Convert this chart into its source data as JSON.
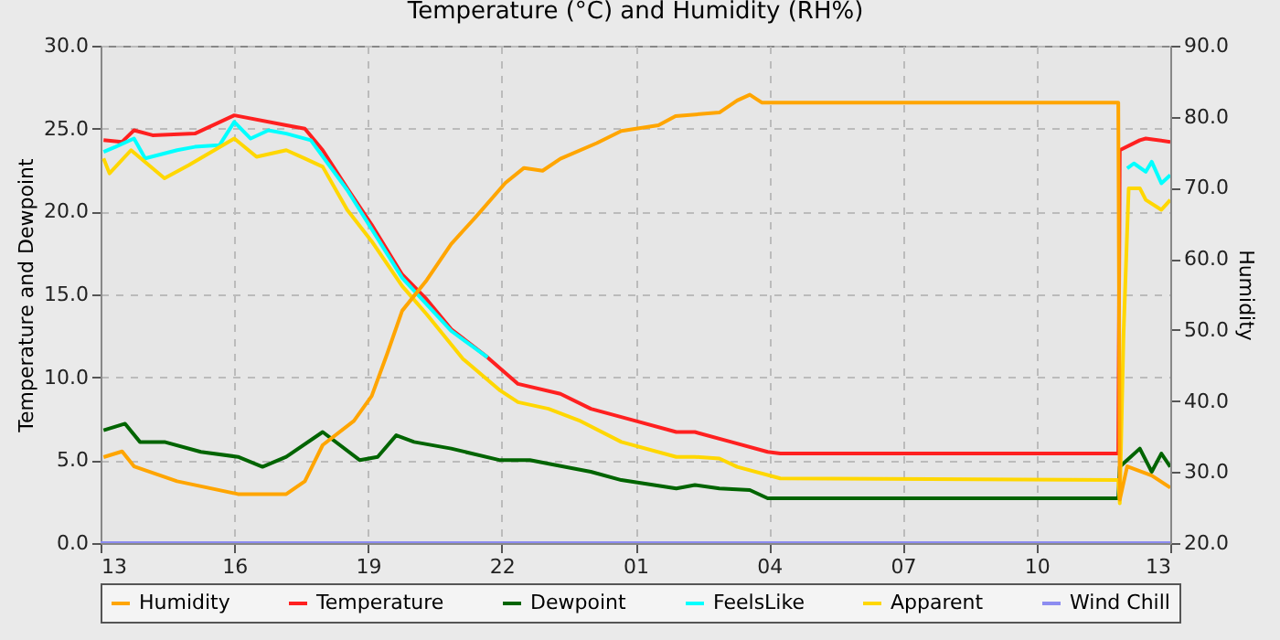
{
  "chart_data": {
    "type": "line",
    "title": "Temperature (°C) and Humidity (RH%)",
    "ylabel": "Temperature and Dewpoint",
    "y2label": "Humidity",
    "xlim": [
      "--01-01T13:00",
      "--01-02T13:00"
    ],
    "xticks": [
      {
        "value": "--01-01T13:00",
        "label": "13"
      },
      {
        "value": "--01-01T16:00",
        "label": "16"
      },
      {
        "value": "--01-01T19:00",
        "label": "19"
      },
      {
        "value": "--01-01T22:00",
        "label": "22"
      },
      {
        "value": "--01-02T01:00",
        "label": "01"
      },
      {
        "value": "--01-02T04:00",
        "label": "04"
      },
      {
        "value": "--01-02T07:00",
        "label": "07"
      },
      {
        "value": "--01-02T10:00",
        "label": "10"
      },
      {
        "value": "--01-02T13:00",
        "label": "13"
      }
    ],
    "ylim": [
      0,
      30
    ],
    "yticks": [
      {
        "value": 0,
        "label": "0.0"
      },
      {
        "value": 5,
        "label": "5.0"
      },
      {
        "value": 10,
        "label": "10.0"
      },
      {
        "value": 15,
        "label": "15.0"
      },
      {
        "value": 20,
        "label": "20.0"
      },
      {
        "value": 25,
        "label": "25.0"
      },
      {
        "value": 30,
        "label": "30.0"
      }
    ],
    "y2lim": [
      20,
      90
    ],
    "y2ticks": [
      {
        "value": 20,
        "label": "20.0"
      },
      {
        "value": 30,
        "label": "30.0"
      },
      {
        "value": 40,
        "label": "40.0"
      },
      {
        "value": 50,
        "label": "50.0"
      },
      {
        "value": 60,
        "label": "60.0"
      },
      {
        "value": 70,
        "label": "70.0"
      },
      {
        "value": 80,
        "label": "80.0"
      },
      {
        "value": 90,
        "label": "90.0"
      }
    ],
    "grid": true,
    "legend": "bottom",
    "line_style": "solid",
    "series": [
      {
        "name": "Humidity",
        "color": "#ffa500",
        "axis": "y2",
        "x": [
          "--01-01T13:04",
          "--01-01T13:29",
          "--01-01T13:45",
          "--01-01T14:43",
          "--01-01T16:05",
          "--01-01T17:10",
          "--01-01T17:35",
          "--01-01T17:59",
          "--01-01T18:41",
          "--01-01T19:05",
          "--01-01T19:26",
          "--01-01T19:46",
          "--01-01T20:19",
          "--01-01T20:52",
          "--01-01T21:25",
          "--01-01T22:05",
          "--01-01T22:30",
          "--01-01T22:55",
          "--01-01T23:19",
          "--01-02T00:08",
          "--01-02T00:41",
          "--01-02T01:31",
          "--01-02T01:54",
          "--01-02T02:53",
          "--01-02T03:17",
          "--01-02T03:34",
          "--01-02T03:50",
          "--01-02T11:50",
          "--01-02T11:52",
          "--01-02T12:02",
          "--01-02T12:35",
          "--01-02T13:00"
        ],
        "values": [
          32.1,
          32.9,
          30.8,
          28.7,
          26.9,
          26.9,
          28.7,
          33.8,
          37.2,
          40.7,
          46.7,
          52.7,
          57.0,
          62.1,
          65.9,
          70.7,
          72.8,
          72.4,
          74.1,
          76.3,
          78.0,
          78.8,
          80.1,
          80.6,
          82.3,
          83.1,
          82.0,
          82.0,
          26.1,
          30.8,
          29.5,
          27.8
        ]
      },
      {
        "name": "Temperature",
        "color": "#ff2020",
        "x": [
          "--01-01T13:04",
          "--01-01T13:29",
          "--01-01T13:45",
          "--01-01T14:10",
          "--01-01T15:07",
          "--01-01T16:00",
          "--01-01T17:10",
          "--01-01T17:35",
          "--01-01T17:59",
          "--01-01T18:32",
          "--01-01T19:05",
          "--01-01T19:46",
          "--01-01T20:19",
          "--01-01T20:52",
          "--01-01T21:41",
          "--01-01T22:22",
          "--01-01T23:19",
          "--01-02T00:00",
          "--01-02T00:58",
          "--01-02T01:55",
          "--01-02T02:20",
          "--01-02T03:09",
          "--01-02T03:58",
          "--01-02T04:15",
          "--01-02T11:50",
          "--01-02T11:52",
          "--01-02T12:19",
          "--01-02T12:27",
          "--01-02T13:00"
        ],
        "values": [
          24.3,
          24.2,
          24.9,
          24.6,
          24.7,
          25.8,
          25.2,
          25.0,
          23.7,
          21.4,
          19.2,
          16.2,
          14.7,
          12.9,
          11.2,
          9.6,
          9.0,
          8.1,
          7.4,
          6.7,
          6.7,
          6.1,
          5.5,
          5.4,
          5.4,
          23.7,
          24.3,
          24.4,
          24.2
        ]
      },
      {
        "name": "Dewpoint",
        "color": "#006400",
        "x": [
          "--01-01T13:04",
          "--01-01T13:33",
          "--01-01T13:53",
          "--01-01T14:26",
          "--01-01T15:15",
          "--01-01T16:05",
          "--01-01T16:38",
          "--01-01T17:10",
          "--01-01T17:59",
          "--01-01T18:49",
          "--01-01T19:13",
          "--01-01T19:38",
          "--01-01T20:02",
          "--01-01T20:52",
          "--01-01T21:58",
          "--01-01T22:38",
          "--01-02T00:00",
          "--01-02T00:41",
          "--01-02T01:55",
          "--01-02T02:20",
          "--01-02T02:53",
          "--01-02T03:34",
          "--01-02T03:58",
          "--01-02T11:50",
          "--01-02T11:52",
          "--01-02T12:19",
          "--01-02T12:35",
          "--01-02T12:48",
          "--01-02T13:00"
        ],
        "values": [
          6.8,
          7.2,
          6.1,
          6.1,
          5.5,
          5.2,
          4.6,
          5.2,
          6.7,
          5.0,
          5.2,
          6.5,
          6.1,
          5.7,
          5.0,
          5.0,
          4.3,
          3.8,
          3.3,
          3.5,
          3.3,
          3.2,
          2.7,
          2.7,
          4.6,
          5.7,
          4.3,
          5.4,
          4.6
        ]
      },
      {
        "name": "FeelsLike",
        "color": "#00ffff",
        "x": [
          "--01-01T13:04",
          "--01-01T13:20",
          "--01-01T13:45",
          "--01-01T14:00",
          "--01-01T14:43",
          "--01-01T15:07",
          "--01-01T15:40",
          "--01-01T16:00",
          "--01-01T16:22",
          "--01-01T16:46",
          "--01-01T17:10",
          "--01-01T17:43",
          "--01-01T18:32",
          "--01-01T19:46",
          "--01-01T20:52",
          "--01-01T21:41",
          "--01-01T22:00",
          "--01-02T12:02",
          "--01-02T12:11",
          "--01-02T12:27",
          "--01-02T12:35",
          "--01-02T12:48",
          "--01-02T13:00"
        ],
        "values": [
          23.6,
          23.9,
          24.4,
          23.2,
          23.7,
          23.9,
          24.0,
          25.4,
          24.4,
          24.9,
          24.7,
          24.3,
          21.3,
          16.0,
          12.8,
          11.2,
          null,
          22.6,
          22.9,
          22.4,
          23.0,
          21.7,
          22.2
        ]
      },
      {
        "name": "Apparent",
        "color": "#ffd700",
        "x": [
          "--01-01T13:04",
          "--01-01T13:12",
          "--01-01T13:41",
          "--01-01T14:26",
          "--01-01T14:59",
          "--01-01T16:00",
          "--01-01T16:30",
          "--01-01T17:10",
          "--01-01T17:35",
          "--01-01T17:59",
          "--01-01T18:32",
          "--01-01T19:05",
          "--01-01T19:46",
          "--01-01T20:19",
          "--01-01T21:08",
          "--01-01T21:58",
          "--01-01T22:22",
          "--01-01T23:03",
          "--01-01T23:44",
          "--01-02T00:41",
          "--01-02T01:55",
          "--01-02T02:20",
          "--01-02T02:53",
          "--01-02T03:17",
          "--01-02T04:15",
          "--01-02T11:50",
          "--01-02T11:52",
          "--01-02T11:57",
          "--01-02T12:04",
          "--01-02T12:19",
          "--01-02T12:27",
          "--01-02T12:48",
          "--01-02T13:00"
        ],
        "values": [
          23.2,
          22.3,
          23.7,
          22.0,
          22.8,
          24.4,
          23.3,
          23.7,
          23.2,
          22.7,
          20.1,
          18.2,
          15.5,
          13.8,
          11.1,
          9.2,
          8.5,
          8.1,
          7.4,
          6.1,
          5.2,
          5.2,
          5.1,
          4.6,
          3.9,
          3.8,
          2.4,
          12.5,
          21.4,
          21.4,
          20.7,
          20.1,
          20.7
        ]
      },
      {
        "name": "Wind Chill",
        "color": "#8c8cf0",
        "x": [
          "--01-01T13:00",
          "--01-02T13:00"
        ],
        "values": [
          0,
          0
        ]
      }
    ]
  }
}
